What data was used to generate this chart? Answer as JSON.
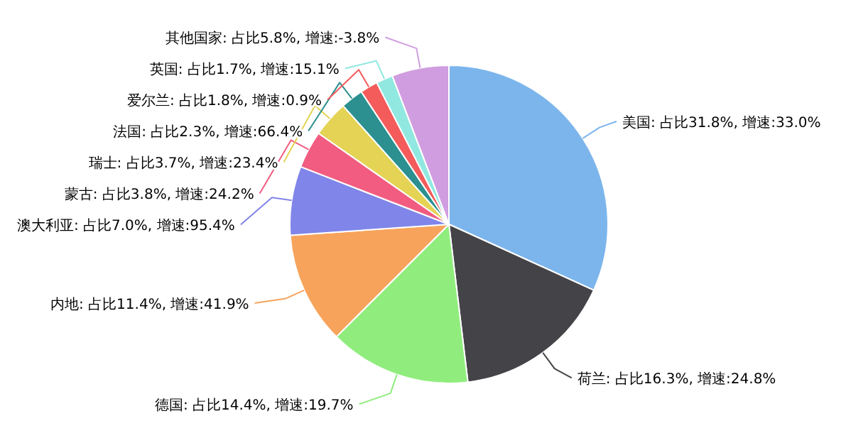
{
  "chart_data": {
    "type": "pie",
    "categories": [
      "美国: 占比31.8%, 增速:33.0%",
      "荷兰: 占比16.3%, 增速:24.8%",
      "德国: 占比14.4%, 增速:19.7%",
      "内地: 占比11.4%, 增速:41.9%",
      "澳大利亚: 占比7.0%, 增速:95.4%",
      "蒙古: 占比3.8%, 增速:24.2%",
      "瑞士: 占比3.7%, 增速:23.4%",
      "法国: 占比2.3%, 增速:66.4%",
      "爱尔兰: 占比1.8%, 增速:0.9%",
      "英国: 占比1.7%, 增速:15.1%",
      "其他国家: 占比5.8%, 增速:-3.8%"
    ],
    "values": [
      31.8,
      16.3,
      14.4,
      11.4,
      7.0,
      3.8,
      3.7,
      2.3,
      1.8,
      1.7,
      5.8
    ],
    "colors": [
      "#7cb5ec",
      "#434348",
      "#90ed7d",
      "#f7a35c",
      "#8085e9",
      "#f15c80",
      "#e4d354",
      "#2b908f",
      "#f45b5b",
      "#91e8e1",
      "#d09ee0"
    ]
  }
}
